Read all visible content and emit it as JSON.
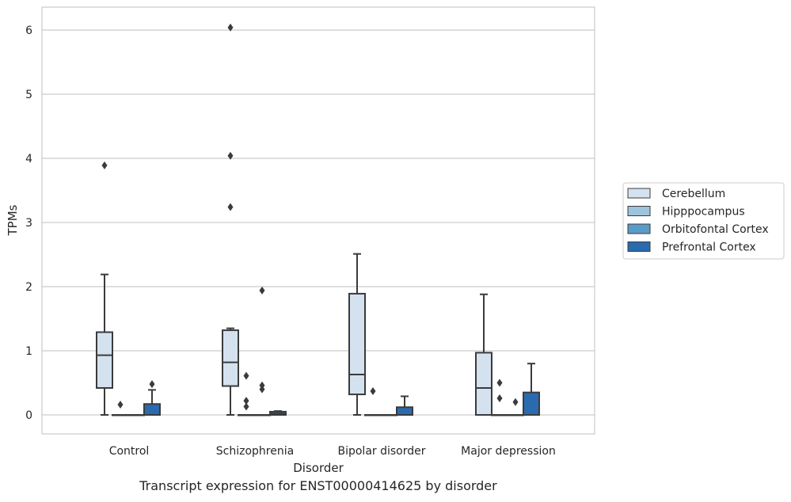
{
  "chart_data": {
    "type": "box",
    "xlabel": "Disorder",
    "ylabel": "TPMs",
    "caption": "Transcript expression for ENST00000414625 by disorder",
    "categories": [
      "Control",
      "Schizophrenia",
      "Bipolar disorder",
      "Major depression"
    ],
    "ylim": [
      -0.3,
      6.35
    ],
    "yticks": [
      0,
      1,
      2,
      3,
      4,
      5,
      6
    ],
    "grid": "horizontal",
    "legend_position": "right",
    "series": [
      {
        "name": "Cerebellum",
        "color": "#d4e2f0",
        "boxes": [
          {
            "q1": 0.42,
            "median": 0.93,
            "q3": 1.29,
            "whisker_low": 0.0,
            "whisker_high": 2.19,
            "outliers": [
              3.89
            ]
          },
          {
            "q1": 0.45,
            "median": 0.82,
            "q3": 1.32,
            "whisker_low": 0.0,
            "whisker_high": 1.35,
            "outliers": [
              3.24,
              4.04,
              6.04
            ]
          },
          {
            "q1": 0.32,
            "median": 0.63,
            "q3": 1.89,
            "whisker_low": 0.0,
            "whisker_high": 2.51,
            "outliers": []
          },
          {
            "q1": 0.0,
            "median": 0.42,
            "q3": 0.97,
            "whisker_low": 0.0,
            "whisker_high": 1.88,
            "outliers": []
          }
        ]
      },
      {
        "name": "Hipppocampus",
        "color": "#9ec4dd",
        "boxes": [
          {
            "q1": 0.0,
            "median": 0.0,
            "q3": 0.0,
            "whisker_low": 0.0,
            "whisker_high": 0.0,
            "outliers": [
              0.16
            ]
          },
          {
            "q1": 0.0,
            "median": 0.0,
            "q3": 0.0,
            "whisker_low": 0.0,
            "whisker_high": 0.0,
            "outliers": [
              0.13,
              0.22,
              0.61
            ]
          },
          {
            "q1": 0.0,
            "median": 0.0,
            "q3": 0.0,
            "whisker_low": 0.0,
            "whisker_high": 0.0,
            "outliers": [
              0.37
            ]
          },
          {
            "q1": 0.0,
            "median": 0.0,
            "q3": 0.0,
            "whisker_low": 0.0,
            "whisker_high": 0.0,
            "outliers": [
              0.26,
              0.5
            ]
          }
        ]
      },
      {
        "name": "Orbitofontal Cortex",
        "color": "#5b9bc9",
        "boxes": [
          {
            "q1": 0.0,
            "median": 0.0,
            "q3": 0.0,
            "whisker_low": 0.0,
            "whisker_high": 0.0,
            "outliers": []
          },
          {
            "q1": 0.0,
            "median": 0.0,
            "q3": 0.0,
            "whisker_low": 0.0,
            "whisker_high": 0.0,
            "outliers": [
              0.4,
              0.46,
              1.94
            ]
          },
          {
            "q1": 0.0,
            "median": 0.0,
            "q3": 0.0,
            "whisker_low": 0.0,
            "whisker_high": 0.0,
            "outliers": []
          },
          {
            "q1": 0.0,
            "median": 0.0,
            "q3": 0.0,
            "whisker_low": 0.0,
            "whisker_high": 0.0,
            "outliers": [
              0.2
            ]
          }
        ]
      },
      {
        "name": "Prefrontal Cortex",
        "color": "#2a6bb0",
        "boxes": [
          {
            "q1": 0.0,
            "median": 0.0,
            "q3": 0.17,
            "whisker_low": 0.0,
            "whisker_high": 0.39,
            "outliers": [
              0.48
            ]
          },
          {
            "q1": 0.0,
            "median": 0.02,
            "q3": 0.05,
            "whisker_low": 0.0,
            "whisker_high": 0.06,
            "outliers": []
          },
          {
            "q1": 0.0,
            "median": 0.0,
            "q3": 0.12,
            "whisker_low": 0.0,
            "whisker_high": 0.29,
            "outliers": []
          },
          {
            "q1": 0.0,
            "median": 0.0,
            "q3": 0.35,
            "whisker_low": 0.0,
            "whisker_high": 0.8,
            "outliers": []
          }
        ]
      }
    ]
  }
}
